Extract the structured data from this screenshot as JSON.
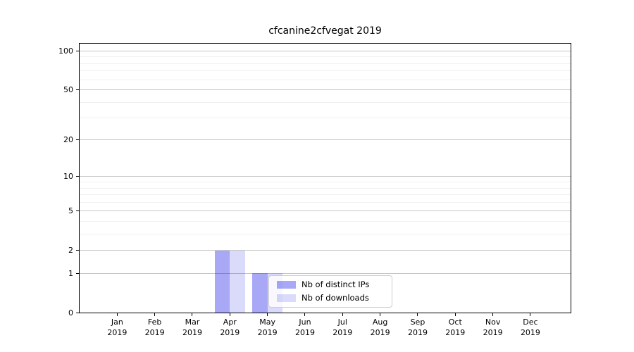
{
  "chart_data": {
    "type": "bar",
    "title": "cfcanine2cfvegat 2019",
    "categories": [
      "Jan 2019",
      "Feb 2019",
      "Mar 2019",
      "Apr 2019",
      "May 2019",
      "Jun 2019",
      "Jul 2019",
      "Aug 2019",
      "Sep 2019",
      "Oct 2019",
      "Nov 2019",
      "Dec 2019"
    ],
    "series": [
      {
        "name": "Nb of distinct IPs",
        "color": "rgba(0,0,230,0.34)",
        "values": [
          0,
          0,
          0,
          2,
          1,
          0,
          0,
          0,
          0,
          0,
          0,
          0
        ]
      },
      {
        "name": "Nb of downloads",
        "color": "rgba(0,0,230,0.145)",
        "values": [
          0,
          0,
          0,
          2,
          1,
          0,
          0,
          0,
          0,
          0,
          0,
          0
        ]
      }
    ],
    "xlabel": "",
    "ylabel": "",
    "yscale": "log1p",
    "ylim": [
      0,
      114
    ],
    "yticks_major": [
      0,
      1,
      2,
      5,
      10,
      20,
      50,
      100
    ],
    "yticks_minor": [
      3,
      4,
      6,
      7,
      8,
      9,
      30,
      40,
      60,
      70,
      80,
      90
    ],
    "grid": "horizontal, major and minor, grid below bars",
    "legend_position": "inside, lower center"
  },
  "colors": {
    "background": "#ffffff",
    "grid_major": "#c6c6c6",
    "grid_minor": "#f0f0f0",
    "spine": "#000000",
    "text": "#000000",
    "legend_border": "#cccccc",
    "legend_bg": "rgba(255,255,255,0.8)"
  }
}
